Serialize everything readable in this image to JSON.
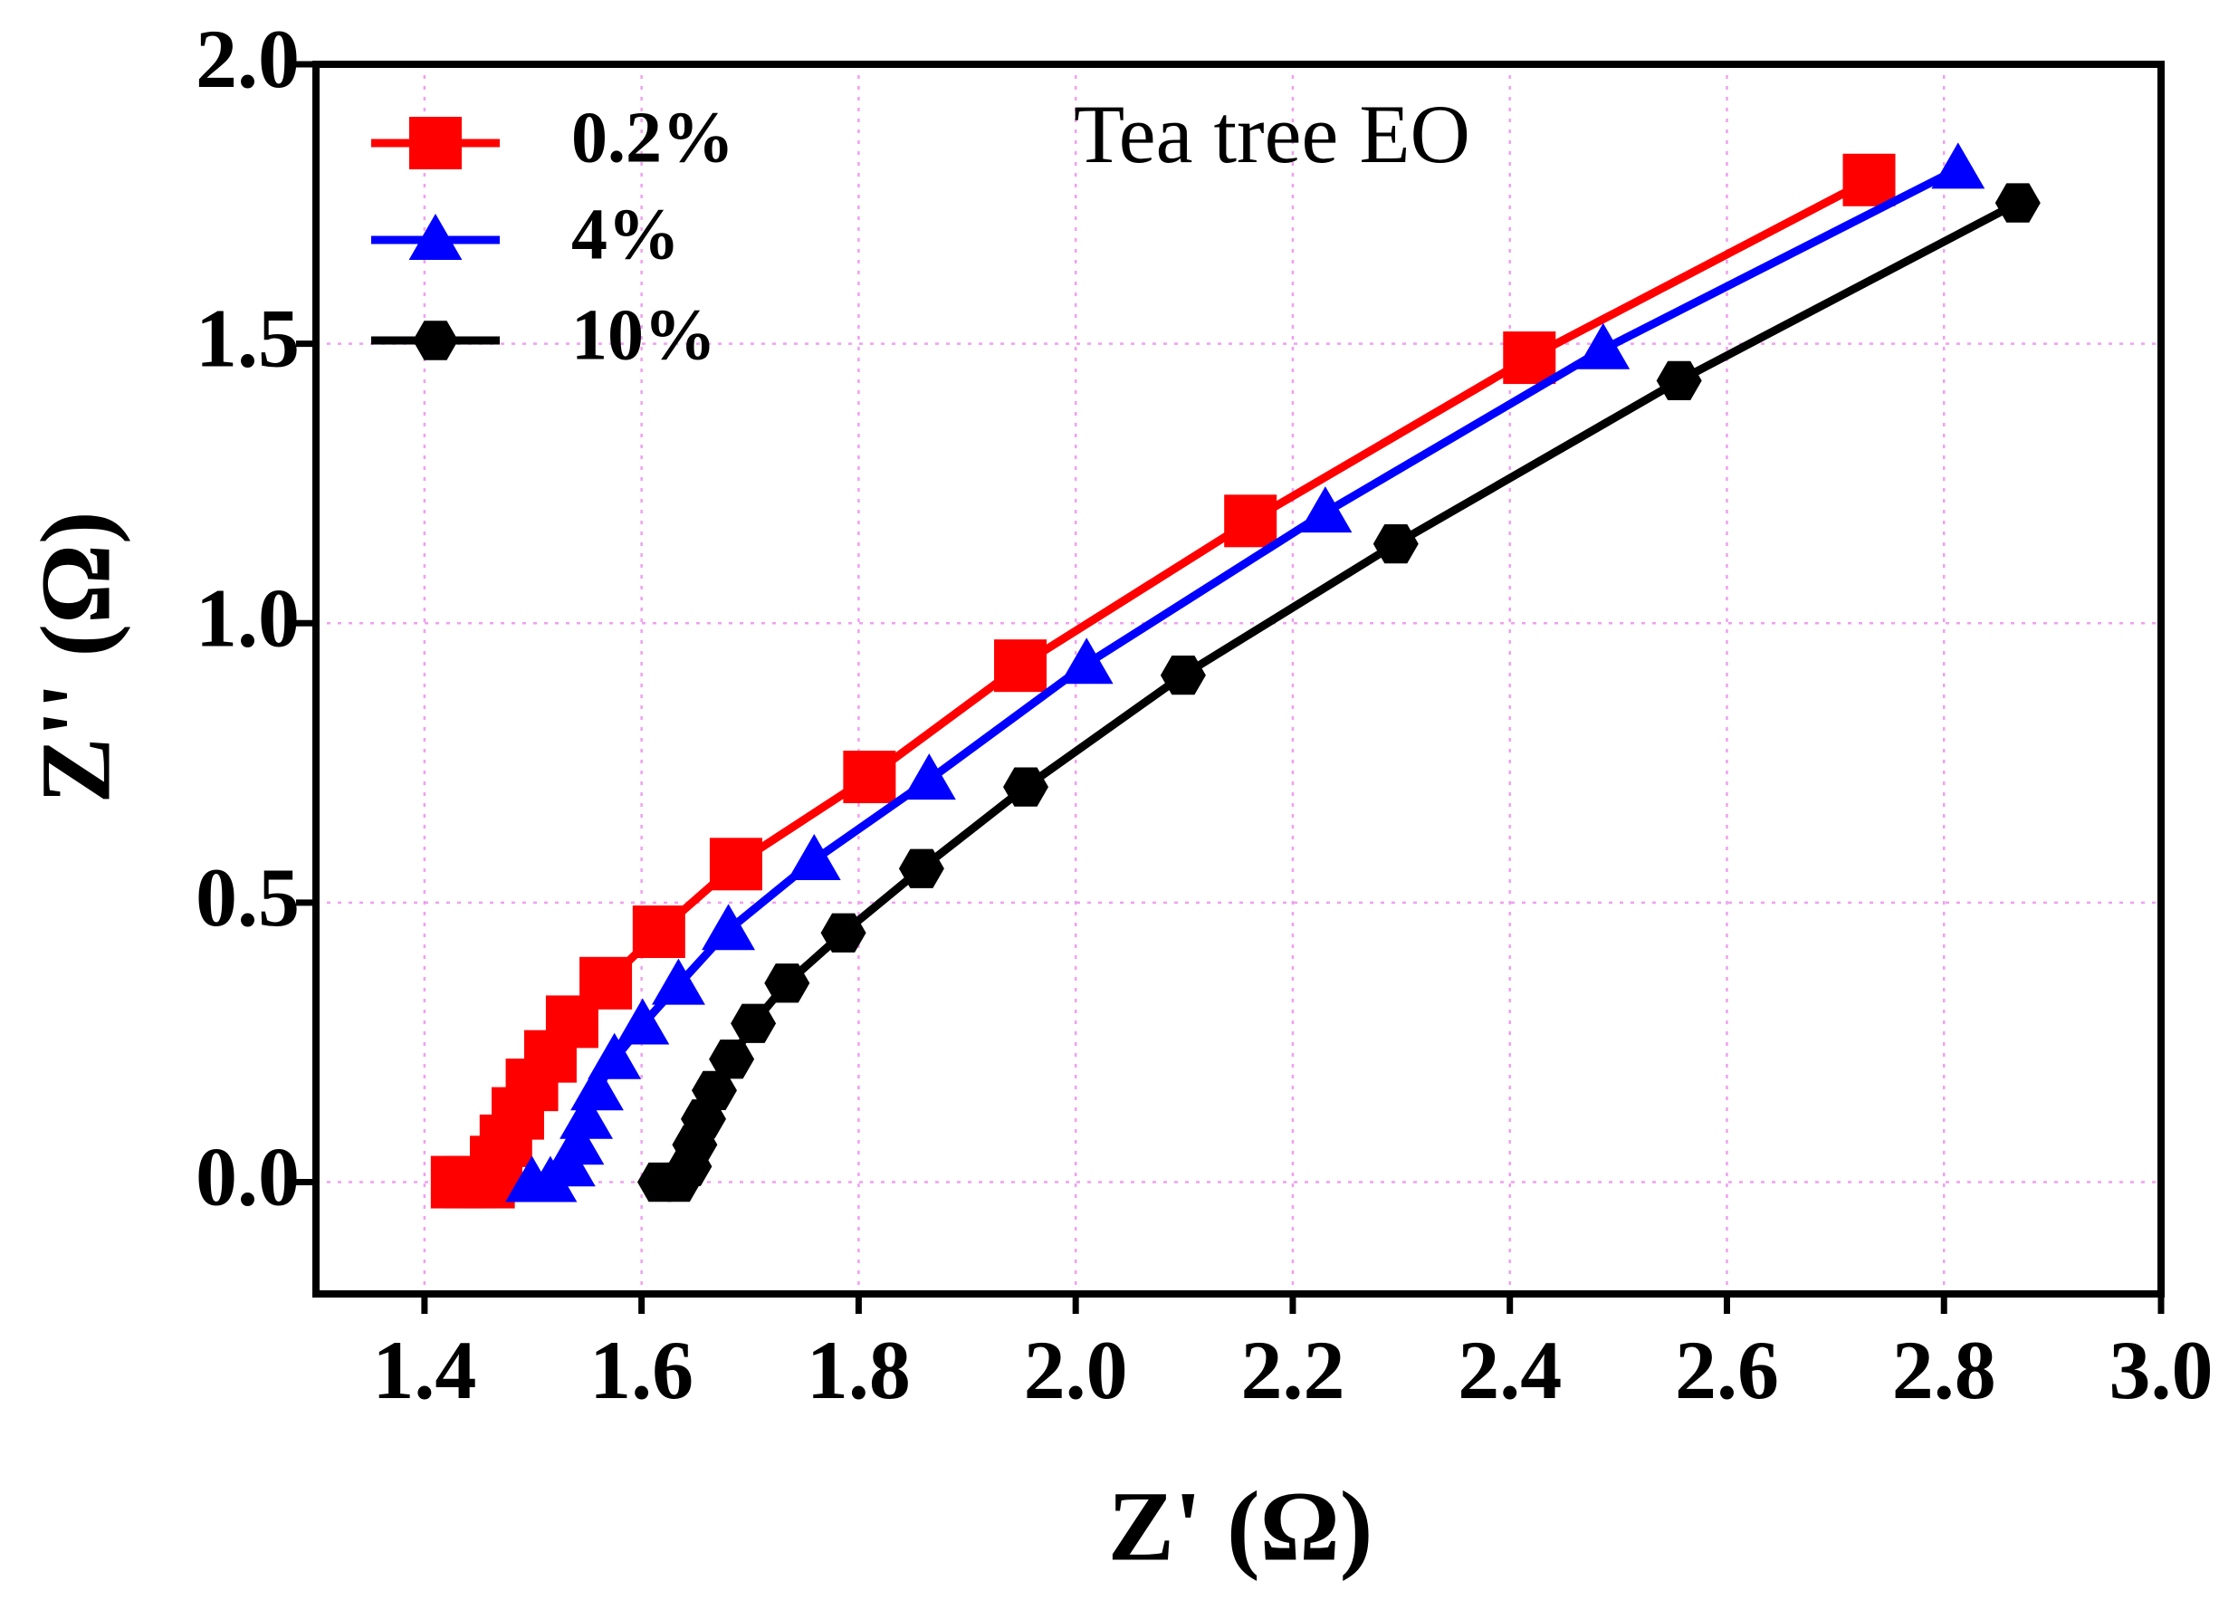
{
  "chart_data": {
    "type": "line",
    "title": "Tea tree EO",
    "xlabel": "Z' (Ω)",
    "ylabel": "Z'' (Ω)",
    "xlim": [
      1.3,
      3.0
    ],
    "ylim": [
      -0.2,
      2.0
    ],
    "xticks": [
      1.4,
      1.6,
      1.8,
      {
        "value": 2,
        "label": "2.0"
      },
      2.2,
      2.4,
      2.6,
      2.8,
      {
        "value": 3,
        "label": "3.0"
      }
    ],
    "yticks": [
      {
        "value": 0,
        "label": "0.0"
      },
      0.5,
      {
        "value": 1,
        "label": "1.0"
      },
      1.5,
      {
        "value": 2,
        "label": "2.0"
      }
    ],
    "grid": true,
    "legend": "upper left",
    "series": [
      {
        "name": "0.2%",
        "color": "#ff0000",
        "marker": "square",
        "x": [
          1.43,
          1.443,
          1.459,
          1.466,
          1.475,
          1.486,
          1.499,
          1.516,
          1.536,
          1.567,
          1.616,
          1.687,
          1.81,
          1.949,
          2.161,
          2.418,
          2.731
        ],
        "values": [
          0,
          0,
          0,
          0.036,
          0.074,
          0.123,
          0.174,
          0.225,
          0.287,
          0.356,
          0.448,
          0.569,
          0.725,
          0.924,
          1.183,
          1.475,
          1.793
        ]
      },
      {
        "name": "4%",
        "color": "#0000ff",
        "marker": "triangle",
        "x": [
          1.499,
          1.516,
          1.533,
          1.541,
          1.549,
          1.559,
          1.575,
          1.601,
          1.634,
          1.68,
          1.759,
          1.865,
          2.01,
          2.23,
          2.486,
          2.813
        ],
        "values": [
          0,
          0,
          0.028,
          0.067,
          0.113,
          0.164,
          0.22,
          0.282,
          0.353,
          0.451,
          0.576,
          0.72,
          0.927,
          1.198,
          1.49,
          1.813
        ]
      },
      {
        "name": "10%",
        "color": "#000000",
        "marker": "hexagon",
        "x": [
          1.617,
          1.634,
          1.644,
          1.649,
          1.657,
          1.667,
          1.683,
          1.703,
          1.734,
          1.786,
          1.858,
          1.954,
          2.099,
          2.295,
          2.556,
          2.868
        ],
        "values": [
          0,
          0,
          0.028,
          0.067,
          0.113,
          0.164,
          0.22,
          0.284,
          0.356,
          0.446,
          0.561,
          0.707,
          0.907,
          1.142,
          1.434,
          1.752
        ]
      }
    ]
  }
}
